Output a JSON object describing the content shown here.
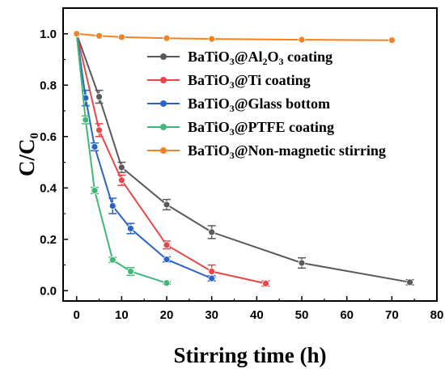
{
  "chart_data": {
    "type": "line",
    "xlabel": "Stirring time (h)",
    "ylabel": {
      "main": "C/C",
      "sub": "0"
    },
    "xlim": [
      -3,
      80
    ],
    "ylim": [
      -0.04,
      1.1
    ],
    "xticks": [
      0,
      10,
      20,
      30,
      40,
      50,
      60,
      70,
      80
    ],
    "yticks": [
      0.0,
      0.2,
      0.4,
      0.6,
      0.8,
      1.0
    ],
    "ytick_labels": [
      "0.0",
      "0.2",
      "0.4",
      "0.6",
      "0.8",
      "1.0"
    ],
    "legend_position": "top-right",
    "grid": false,
    "series": [
      {
        "name": "BaTiO3@Al2O3 coating",
        "legend_parts": [
          [
            "BaTiO",
            "n"
          ],
          [
            "3",
            "sub"
          ],
          [
            "@Al",
            "n"
          ],
          [
            "2",
            "sub"
          ],
          [
            "O",
            "n"
          ],
          [
            "3",
            "sub"
          ],
          [
            " coating",
            "n"
          ]
        ],
        "color": "#595959",
        "x": [
          0,
          5,
          10,
          20,
          30,
          50,
          74
        ],
        "y": [
          1.0,
          0.755,
          0.48,
          0.335,
          0.228,
          0.108,
          0.033
        ],
        "err": [
          0,
          0.025,
          0.02,
          0.02,
          0.025,
          0.02,
          0.01
        ]
      },
      {
        "name": "BaTiO3@Ti coating",
        "legend_parts": [
          [
            "BaTiO",
            "n"
          ],
          [
            "3",
            "sub"
          ],
          [
            "@Ti coating",
            "n"
          ]
        ],
        "color": "#e8474a",
        "x": [
          0,
          5,
          10,
          20,
          30,
          42
        ],
        "y": [
          1.0,
          0.625,
          0.43,
          0.178,
          0.075,
          0.028
        ],
        "err": [
          0,
          0.025,
          0.02,
          0.015,
          0.025,
          0.01
        ]
      },
      {
        "name": "BaTiO3@Glass bottom",
        "legend_parts": [
          [
            "BaTiO",
            "n"
          ],
          [
            "3",
            "sub"
          ],
          [
            "@Glass bottom",
            "n"
          ]
        ],
        "color": "#2a63c7",
        "x": [
          0,
          2,
          4,
          8,
          12,
          20,
          30
        ],
        "y": [
          1.0,
          0.75,
          0.56,
          0.33,
          0.242,
          0.122,
          0.048
        ],
        "err": [
          0,
          0.03,
          0.015,
          0.03,
          0.02,
          0.01,
          0.01
        ]
      },
      {
        "name": "BaTiO3@PTFE coating",
        "legend_parts": [
          [
            "BaTiO",
            "n"
          ],
          [
            "3",
            "sub"
          ],
          [
            "@PTFE coating",
            "n"
          ]
        ],
        "color": "#3fb877",
        "x": [
          0,
          2,
          4,
          8,
          12,
          20
        ],
        "y": [
          1.0,
          0.665,
          0.39,
          0.12,
          0.075,
          0.03
        ],
        "err": [
          0,
          0.015,
          0.012,
          0.01,
          0.015,
          0.005
        ]
      },
      {
        "name": "BaTiO3@Non-magnetic stirring",
        "legend_parts": [
          [
            "BaTiO",
            "n"
          ],
          [
            "3",
            "sub"
          ],
          [
            "@Non-magnetic stirring",
            "n"
          ]
        ],
        "color": "#f5821f",
        "x": [
          0,
          5,
          10,
          20,
          30,
          50,
          70
        ],
        "y": [
          1.0,
          0.992,
          0.987,
          0.983,
          0.98,
          0.977,
          0.975
        ],
        "err": [
          0,
          0,
          0,
          0,
          0,
          0,
          0
        ]
      }
    ]
  }
}
